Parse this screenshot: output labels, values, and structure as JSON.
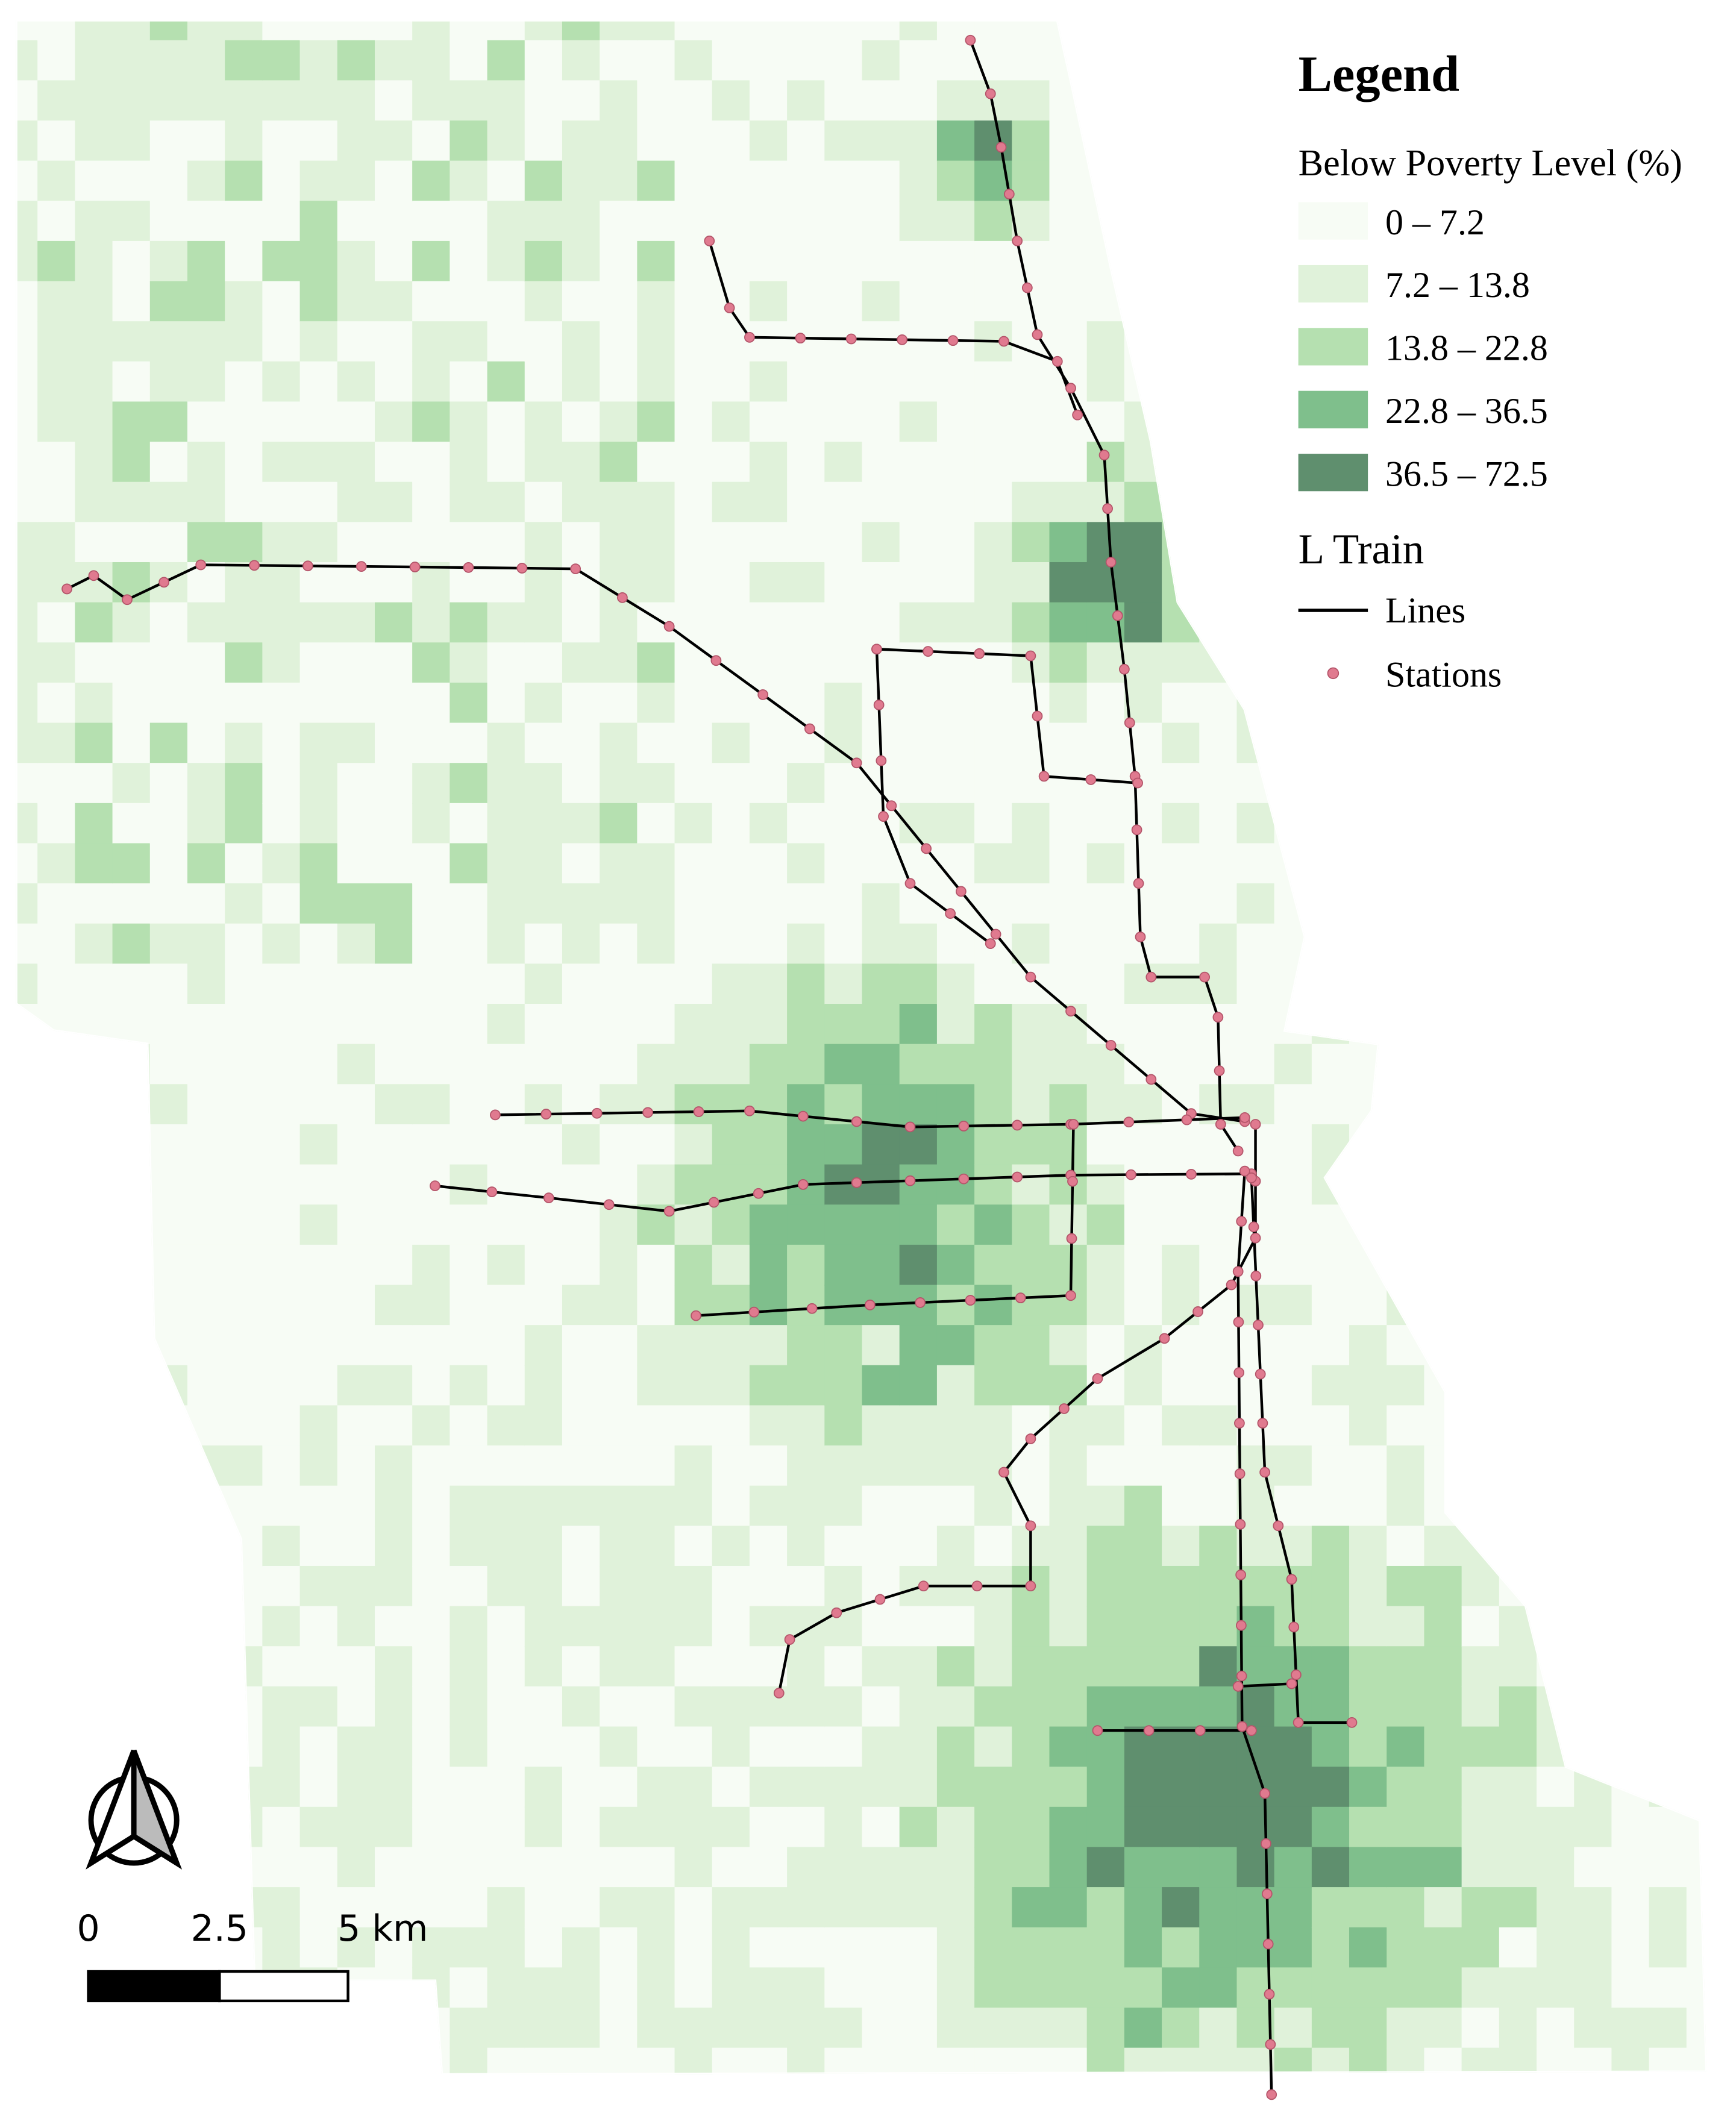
{
  "legend": {
    "title": "Legend",
    "subtitle": "Below Poverty Level (%)",
    "classes": [
      {
        "label": "0 – 7.2",
        "color": "#f7fcf5"
      },
      {
        "label": "7.2 – 13.8",
        "color": "#e0f2da"
      },
      {
        "label": "13.8 – 22.8",
        "color": "#b5e0b0"
      },
      {
        "label": "22.8 – 36.5",
        "color": "#7fbf8c"
      },
      {
        "label": "36.5 – 72.5",
        "color": "#5f8f6e"
      }
    ],
    "layer_title": "L Train",
    "lines": "Lines",
    "stations": "Stations"
  },
  "scale_bar": {
    "labels": [
      "0",
      "2.5",
      "5 km"
    ]
  }
}
